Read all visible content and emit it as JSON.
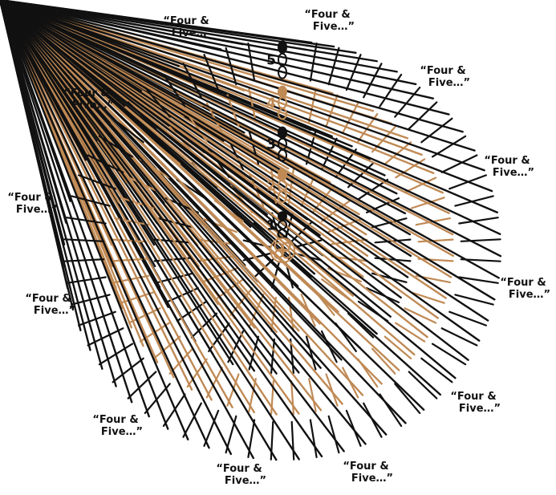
{
  "diagram": {
    "center": "magic-ring",
    "colors": {
      "black": "#111111",
      "tan": "#c08a55"
    },
    "rounds": [
      {
        "label": "1",
        "color": "black",
        "stitch": "double-crochet"
      },
      {
        "label": "2",
        "color": "tan",
        "stitch": "double-crochet"
      },
      {
        "label": "3",
        "color": "black",
        "stitch": "double-crochet"
      },
      {
        "label": "4",
        "color": "tan",
        "stitch": "double-crochet"
      },
      {
        "label": "5",
        "color": "black",
        "stitch": "double-crochet"
      }
    ],
    "callouts": [
      {
        "line1": "“Four &",
        "line2": "Five…”"
      },
      {
        "line1": "“Four &",
        "line2": "Five…”"
      },
      {
        "line1": "“Four &",
        "line2": "Five…”"
      },
      {
        "line1": "“Four &",
        "line2": "Five…”"
      },
      {
        "line1": "“Four &",
        "line2": "Five…”"
      },
      {
        "line1": "“Four &",
        "line2": "Five…”"
      },
      {
        "line1": "“Four &",
        "line2": "Five…”"
      },
      {
        "line1": "“Four &",
        "line2": "Five…”"
      },
      {
        "line1": "“Four &",
        "line2": "Five…”"
      },
      {
        "line1": "“Four &",
        "line2": "Five…”"
      },
      {
        "line1": "“Four &",
        "line2": "Five…”"
      },
      {
        "line1": "“Four &",
        "line2": "Five…”"
      }
    ]
  }
}
